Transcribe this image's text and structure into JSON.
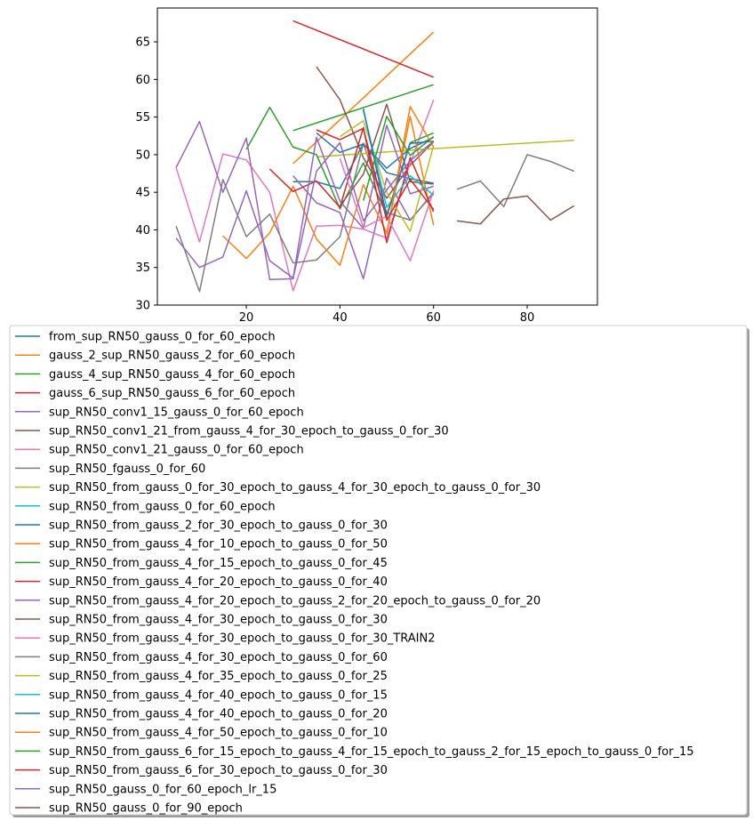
{
  "chart_data": {
    "type": "line",
    "title": "",
    "xlabel": "",
    "ylabel": "",
    "xlim": [
      1,
      95
    ],
    "ylim": [
      30,
      69.5
    ],
    "xticks": [
      20,
      40,
      60,
      80
    ],
    "yticks": [
      30,
      35,
      40,
      45,
      50,
      55,
      60,
      65
    ],
    "grid": false,
    "legend_placement": "below",
    "series": [
      {
        "name": "from_sup_RN50_gauss_0_for_60_epoch",
        "color": "#1f77b4",
        "x": [
          30,
          35,
          40,
          45,
          50,
          55,
          60
        ],
        "y": [
          46.4,
          46.4,
          45.5,
          51.5,
          47.6,
          46.8,
          46.2
        ]
      },
      {
        "name": "gauss_2_sup_RN50_gauss_2_for_60_epoch",
        "color": "#ff7f0e",
        "x": [
          30,
          60
        ],
        "y": [
          48.8,
          66.3
        ]
      },
      {
        "name": "gauss_4_sup_RN50_gauss_4_for_60_epoch",
        "color": "#2ca02c",
        "x": [
          30,
          60
        ],
        "y": [
          53.2,
          59.3
        ]
      },
      {
        "name": "gauss_6_sup_RN50_gauss_6_for_60_epoch",
        "color": "#d62728",
        "x": [
          30,
          60
        ],
        "y": [
          67.8,
          60.3
        ]
      },
      {
        "name": "sup_RN50_conv1_15_gauss_0_for_60_epoch",
        "color": "#9467bd",
        "x": [
          30,
          35,
          40,
          45,
          50,
          55,
          60
        ],
        "y": [
          47.2,
          43.6,
          42.3,
          33.5,
          46.9,
          41.3,
          45.0
        ]
      },
      {
        "name": "sup_RN50_conv1_21_from_gauss_4_for_30_epoch_to_gauss_0_for_30",
        "color": "#8c564b",
        "x": [
          35,
          40,
          45,
          50,
          55,
          60
        ],
        "y": [
          61.7,
          57.3,
          49.6,
          44.2,
          48.6,
          51.7
        ]
      },
      {
        "name": "sup_RN50_conv1_21_gauss_0_for_60_epoch",
        "color": "#e377c2",
        "x": [
          5,
          10,
          15,
          20,
          25,
          30,
          35,
          40,
          45,
          50,
          55,
          60
        ],
        "y": [
          48.3,
          38.4,
          50.1,
          49.3,
          45.0,
          31.9,
          40.5,
          40.6,
          40.1,
          38.9,
          48.9,
          57.3
        ]
      },
      {
        "name": "sup_RN50_fgauss_0_for_60",
        "color": "#7f7f7f",
        "x": [
          5,
          10,
          15,
          20,
          25,
          30,
          35,
          40,
          45,
          50,
          55,
          60
        ],
        "y": [
          40.5,
          31.8,
          46.7,
          39.1,
          42.1,
          35.6,
          36.0,
          39.1,
          51.5,
          42.3,
          41.3,
          44.9
        ]
      },
      {
        "name": "sup_RN50_from_gauss_0_for_30_epoch_to_gauss_4_for_30_epoch_to_gauss_0_for_30",
        "color": "#bcbd22",
        "x": [
          35,
          60,
          90
        ],
        "y": [
          49.7,
          50.8,
          51.9
        ]
      },
      {
        "name": "sup_RN50_from_gauss_0_for_60_epoch",
        "color": "#17becf",
        "x": [],
        "y": []
      },
      {
        "name": "sup_RN50_from_gauss_2_for_30_epoch_to_gauss_0_for_30",
        "color": "#1f77b4",
        "x": [
          35,
          40,
          45,
          50,
          55,
          60
        ],
        "y": [
          52.9,
          50.3,
          51.4,
          48.2,
          50.8,
          52.3
        ]
      },
      {
        "name": "sup_RN50_from_gauss_4_for_10_epoch_to_gauss_0_for_50",
        "color": "#ff7f0e",
        "x": [
          15,
          20,
          25,
          30,
          35,
          40,
          45,
          50,
          55,
          60
        ],
        "y": [
          39.2,
          36.2,
          39.6,
          45.8,
          38.8,
          35.3,
          46.0,
          39.6,
          55.1,
          40.6
        ]
      },
      {
        "name": "sup_RN50_from_gauss_4_for_15_epoch_to_gauss_0_for_45",
        "color": "#2ca02c",
        "x": [
          20,
          25,
          30,
          35,
          40,
          45,
          50,
          55,
          60
        ],
        "y": [
          50.7,
          56.3,
          51.0,
          50.0,
          42.8,
          48.9,
          42.0,
          51.6,
          52.9
        ]
      },
      {
        "name": "sup_RN50_from_gauss_4_for_20_epoch_to_gauss_0_for_40",
        "color": "#d62728",
        "x": [
          25,
          30,
          35,
          40,
          45,
          50,
          55,
          60
        ],
        "y": [
          48.1,
          45.1,
          46.5,
          43.0,
          53.6,
          38.3,
          49.6,
          42.4
        ]
      },
      {
        "name": "sup_RN50_from_gauss_4_for_20_epoch_to_gauss_2_for_20_epoch_to_gauss_0_for_20",
        "color": "#9467bd",
        "x": [
          5,
          10,
          15,
          20,
          25,
          30,
          35,
          40,
          45,
          50,
          55,
          60
        ],
        "y": [
          38.9,
          35.0,
          36.4,
          45.2,
          35.9,
          33.6,
          52.3,
          43.8,
          40.2,
          53.9,
          44.8,
          45.8
        ]
      },
      {
        "name": "sup_RN50_from_gauss_4_for_30_epoch_to_gauss_0_for_30",
        "color": "#8c564b",
        "x": [
          40,
          45,
          50,
          55,
          60
        ],
        "y": [
          43.2,
          47.4,
          56.7,
          46.4,
          46.1
        ]
      },
      {
        "name": "sup_RN50_from_gauss_4_for_30_epoch_to_gauss_0_for_30_TRAIN2",
        "color": "#e377c2",
        "x": [
          40,
          45,
          50,
          55,
          60
        ],
        "y": [
          49.5,
          40.3,
          41.8,
          35.9,
          45.2
        ]
      },
      {
        "name": "sup_RN50_from_gauss_4_for_30_epoch_to_gauss_0_for_60",
        "color": "#7f7f7f",
        "x": [
          65,
          70,
          75,
          80,
          85,
          90
        ],
        "y": [
          45.4,
          46.5,
          43.1,
          50.0,
          49.1,
          47.8
        ]
      },
      {
        "name": "sup_RN50_from_gauss_4_for_35_epoch_to_gauss_0_for_25",
        "color": "#bcbd22",
        "x": [
          40,
          45,
          50,
          55,
          60
        ],
        "y": [
          52.4,
          54.5,
          45.0,
          39.8,
          51.2
        ]
      },
      {
        "name": "sup_RN50_from_gauss_4_for_40_epoch_to_gauss_0_for_15",
        "color": "#17becf",
        "x": [
          45,
          50,
          55,
          60
        ],
        "y": [
          55.9,
          43.0,
          47.2,
          44.6
        ]
      },
      {
        "name": "sup_RN50_from_gauss_4_for_40_epoch_to_gauss_0_for_20",
        "color": "#1f77b4",
        "x": [
          45,
          50,
          55,
          60
        ],
        "y": [
          56.1,
          41.8,
          51.5,
          51.8
        ]
      },
      {
        "name": "sup_RN50_from_gauss_4_for_50_epoch_to_gauss_0_for_10",
        "color": "#ff7f0e",
        "x": [
          50,
          55,
          60
        ],
        "y": [
          39.4,
          56.4,
          51.0
        ]
      },
      {
        "name": "sup_RN50_from_gauss_6_for_15_epoch_to_gauss_4_for_15_epoch_to_gauss_2_for_15_epoch_to_gauss_0_for_15",
        "color": "#2ca02c",
        "x": [
          45,
          50,
          55,
          60
        ],
        "y": [
          43.9,
          55.1,
          49.9,
          52.4
        ]
      },
      {
        "name": "sup_RN50_from_gauss_6_for_30_epoch_to_gauss_0_for_30",
        "color": "#d62728",
        "x": [
          35,
          40,
          45,
          50,
          55,
          60
        ],
        "y": [
          53.3,
          52.0,
          53.5,
          41.3,
          46.7,
          42.7
        ]
      },
      {
        "name": "sup_RN50_gauss_0_for_60_epoch_lr_15",
        "color": "#9467bd",
        "x": [
          5,
          10,
          15,
          20,
          25,
          30,
          35,
          40,
          45,
          50,
          55,
          60
        ],
        "y": [
          48.3,
          54.4,
          45.0,
          52.2,
          33.4,
          33.5,
          47.8,
          51.6,
          41.2,
          45.3,
          49.2,
          51.8
        ]
      },
      {
        "name": "sup_RN50_gauss_0_for_90_epoch",
        "color": "#8c564b",
        "x": [
          65,
          70,
          75,
          80,
          85,
          90
        ],
        "y": [
          41.2,
          40.8,
          44.1,
          44.5,
          41.3,
          43.2
        ]
      }
    ]
  }
}
